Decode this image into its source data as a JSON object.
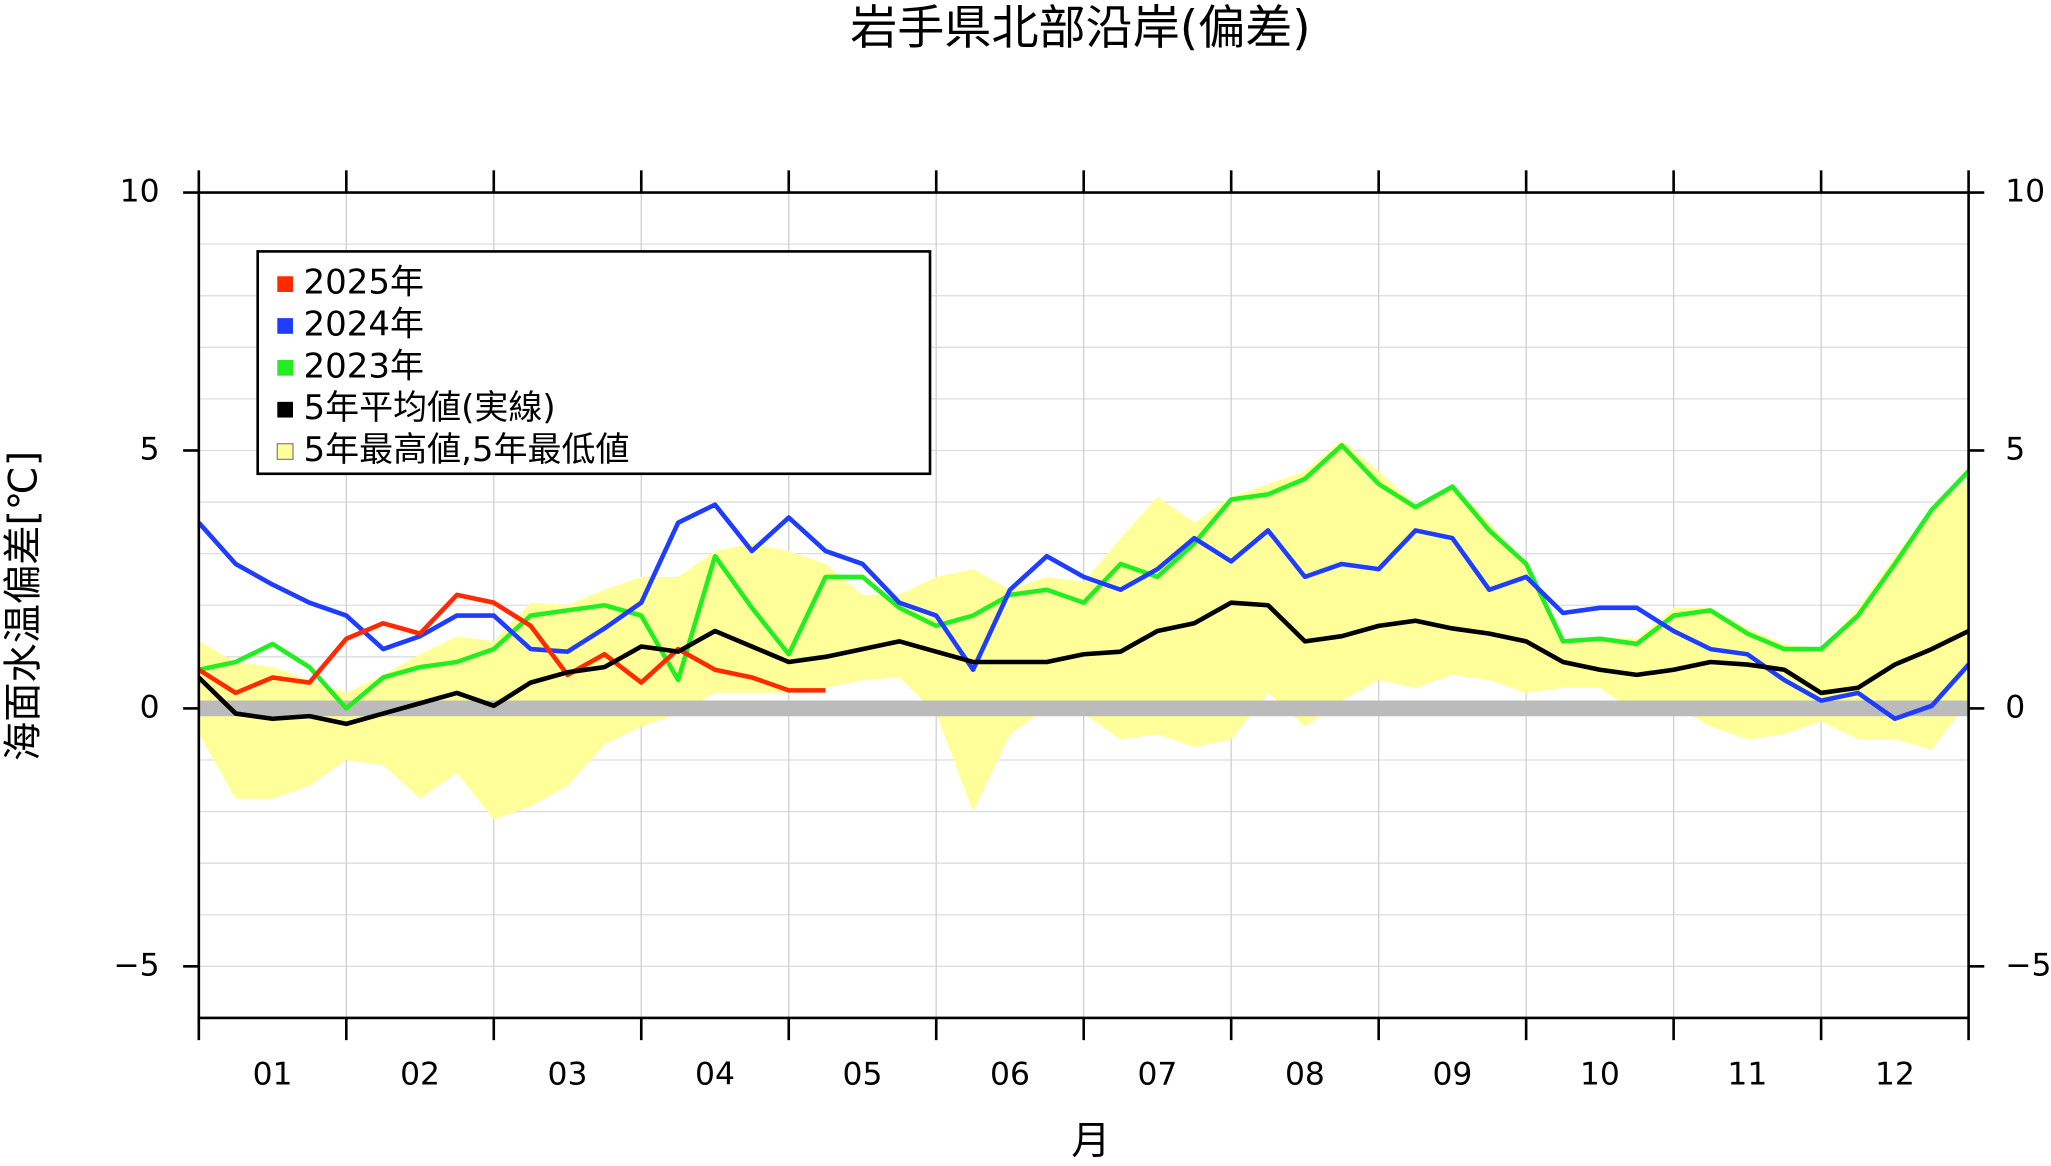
{
  "chart_data": {
    "type": "line",
    "title": "岩手県北部沿岸(偏差)",
    "y_label": "海面水温偏差[℃]",
    "x_label": "月",
    "categories": [
      "01",
      "02",
      "03",
      "04",
      "05",
      "06",
      "07",
      "08",
      "09",
      "10",
      "11",
      "12"
    ],
    "xlim": [
      0,
      12
    ],
    "x": [
      0,
      0.25,
      0.5,
      0.75,
      1,
      1.25,
      1.5,
      1.75,
      2,
      2.25,
      2.5,
      2.75,
      3,
      3.25,
      3.5,
      3.75,
      4,
      4.25,
      4.5,
      4.75,
      5,
      5.25,
      5.5,
      5.75,
      6,
      6.25,
      6.5,
      6.75,
      7,
      7.25,
      7.5,
      7.75,
      8,
      8.25,
      8.5,
      8.75,
      9,
      9.25,
      9.5,
      9.75,
      10,
      10.25,
      10.5,
      10.75,
      11,
      11.25,
      11.5,
      11.75,
      12
    ],
    "ylim": [
      -6,
      10
    ],
    "yticks": [
      {
        "value": -5,
        "label": "−5"
      },
      0,
      5,
      10
    ],
    "minor_yticks": [
      -6,
      -5,
      -4,
      -3,
      -2,
      -1,
      0,
      1,
      2,
      3,
      4,
      5,
      6,
      7,
      8,
      9,
      10
    ],
    "grid": true,
    "zero_line": {
      "value": 0,
      "color": "#bbbbbb"
    },
    "band": {
      "name": "5年最高値,5年最低値",
      "color": "#ffff99",
      "upper": [
        1.3,
        0.9,
        0.8,
        0.55,
        0.3,
        0.65,
        1.05,
        1.4,
        1.3,
        2.05,
        2.0,
        2.3,
        2.55,
        2.55,
        3.05,
        3.2,
        3.05,
        2.8,
        2.2,
        2.2,
        2.55,
        2.7,
        2.3,
        2.55,
        2.45,
        3.3,
        4.1,
        3.6,
        4.1,
        4.35,
        4.6,
        5.2,
        4.6,
        3.95,
        4.35,
        3.6,
        2.8,
        1.35,
        1.4,
        1.35,
        1.95,
        1.95,
        1.55,
        1.25,
        1.15,
        1.95,
        2.95,
        3.85,
        4.45
      ],
      "lower": [
        -0.5,
        -1.75,
        -1.75,
        -1.5,
        -1.0,
        -1.1,
        -1.75,
        -1.25,
        -2.15,
        -1.9,
        -1.5,
        -0.7,
        -0.35,
        -0.1,
        0.3,
        0.3,
        0.3,
        0.4,
        0.55,
        0.6,
        -0.1,
        -2.0,
        -0.5,
        0.0,
        -0.1,
        -0.6,
        -0.5,
        -0.75,
        -0.6,
        0.3,
        -0.35,
        0.15,
        0.55,
        0.4,
        0.65,
        0.55,
        0.3,
        0.4,
        0.4,
        -0.1,
        0.05,
        -0.35,
        -0.6,
        -0.5,
        -0.25,
        -0.6,
        -0.6,
        -0.8,
        0.15
      ]
    },
    "series": [
      {
        "name": "2025年",
        "color": "#ff2a00",
        "values": [
          0.75,
          0.3,
          0.6,
          0.5,
          1.35,
          1.65,
          1.45,
          2.2,
          2.05,
          1.6,
          0.65,
          1.05,
          0.5,
          1.15,
          0.75,
          0.6,
          0.35,
          0.35,
          null,
          null,
          null,
          null,
          null,
          null,
          null,
          null,
          null,
          null,
          null,
          null,
          null,
          null,
          null,
          null,
          null,
          null,
          null,
          null,
          null,
          null,
          null,
          null,
          null,
          null,
          null,
          null,
          null,
          null,
          null
        ]
      },
      {
        "name": "2024年",
        "color": "#1f3dff",
        "values": [
          3.6,
          2.8,
          2.4,
          2.05,
          1.8,
          1.15,
          1.4,
          1.8,
          1.8,
          1.15,
          1.1,
          1.55,
          2.05,
          3.6,
          3.95,
          3.05,
          3.7,
          3.05,
          2.8,
          2.05,
          1.8,
          0.75,
          2.3,
          2.95,
          2.55,
          2.3,
          2.7,
          3.3,
          2.85,
          3.45,
          2.55,
          2.8,
          2.7,
          3.45,
          3.3,
          2.3,
          2.55,
          1.85,
          1.95,
          1.95,
          1.5,
          1.15,
          1.05,
          0.55,
          0.15,
          0.3,
          -0.2,
          0.05,
          0.85
        ]
      },
      {
        "name": "2023年",
        "color": "#22ee22",
        "values": [
          0.75,
          0.9,
          1.25,
          0.8,
          0.0,
          0.6,
          0.8,
          0.9,
          1.15,
          1.8,
          1.9,
          2.0,
          1.8,
          0.55,
          2.95,
          1.95,
          1.05,
          2.55,
          2.55,
          1.95,
          1.6,
          1.8,
          2.2,
          2.3,
          2.05,
          2.8,
          2.55,
          3.2,
          4.05,
          4.15,
          4.45,
          5.1,
          4.35,
          3.9,
          4.3,
          3.45,
          2.8,
          1.3,
          1.35,
          1.25,
          1.8,
          1.9,
          1.45,
          1.15,
          1.15,
          1.8,
          2.8,
          3.85,
          4.6
        ]
      },
      {
        "name": "5年平均値(実線)",
        "color": "#000000",
        "values": [
          0.6,
          -0.1,
          -0.2,
          -0.15,
          -0.3,
          -0.1,
          0.1,
          0.3,
          0.05,
          0.5,
          0.7,
          0.8,
          1.2,
          1.1,
          1.5,
          1.2,
          0.9,
          1.0,
          1.15,
          1.3,
          1.1,
          0.9,
          0.9,
          0.9,
          1.05,
          1.1,
          1.5,
          1.65,
          2.05,
          2.0,
          1.3,
          1.4,
          1.6,
          1.7,
          1.55,
          1.45,
          1.3,
          0.9,
          0.75,
          0.65,
          0.75,
          0.9,
          0.85,
          0.75,
          0.3,
          0.4,
          0.85,
          1.15,
          1.5
        ]
      }
    ]
  }
}
